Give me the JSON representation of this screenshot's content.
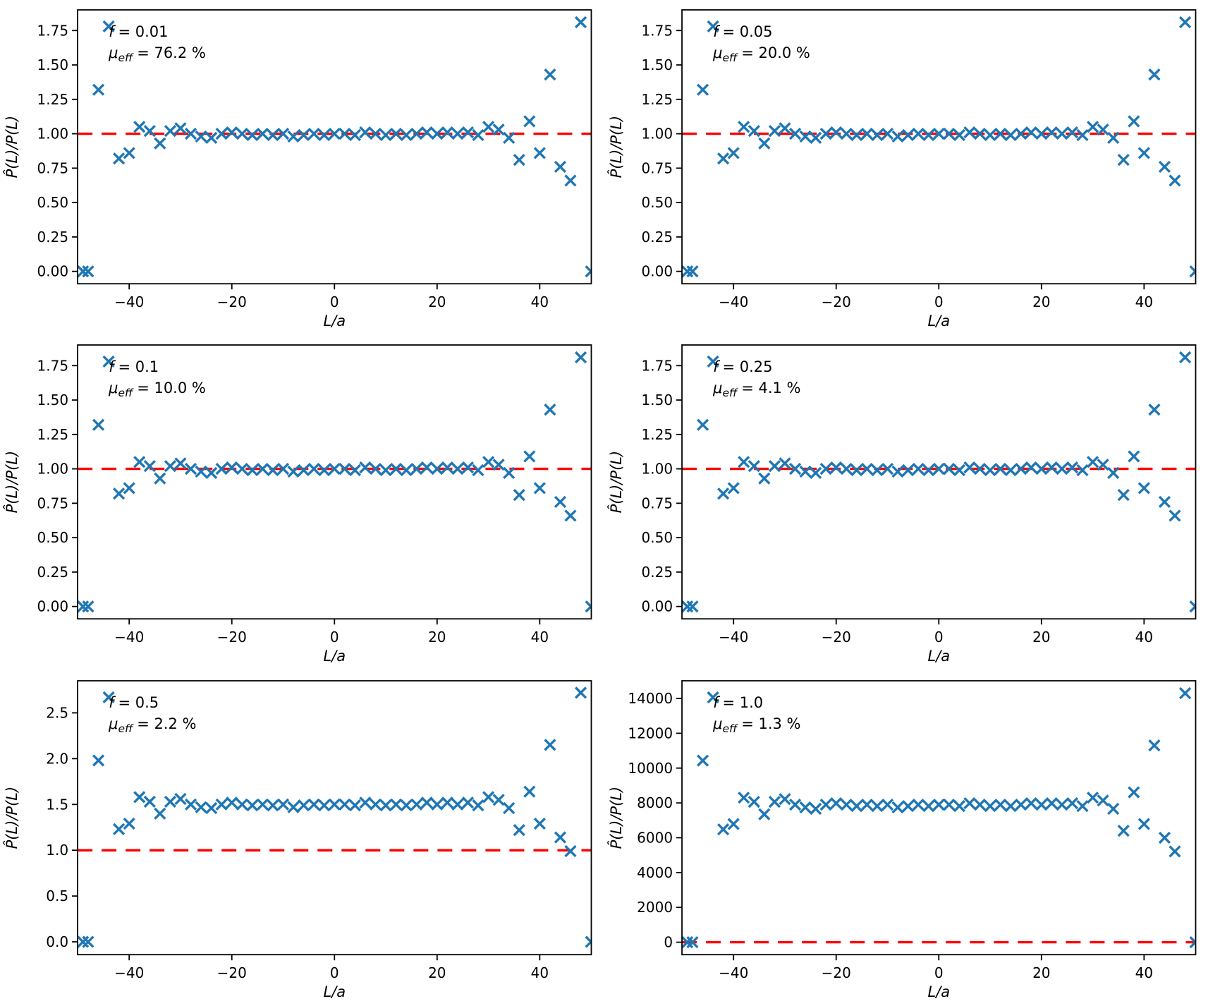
{
  "style": {
    "background": "#ffffff",
    "marker_color": "#1f77b4",
    "reference_line_color": "#ff0000",
    "axis_color": "#000000",
    "text_color": "#000000"
  },
  "chart_data": {
    "type": "scatter",
    "marker": "x",
    "grid": false,
    "legend": "none",
    "xlabel": "L/a",
    "ylabel": "P̂(L)/P(L)",
    "xlim": [
      -50.05,
      50.05
    ],
    "xticks": [
      -40,
      -20,
      0,
      20,
      40
    ],
    "xtick_labels": [
      "−40",
      "−20",
      "0",
      "20",
      "40"
    ],
    "reference_line_y": 1.0,
    "x": [
      -49,
      -48,
      -46,
      -44,
      -42,
      -40,
      -38,
      -36,
      -34,
      -32,
      -30,
      -28,
      -26,
      -24,
      -22,
      -20,
      -18,
      -16,
      -14,
      -12,
      -10,
      -8,
      -6,
      -4,
      -2,
      0,
      2,
      4,
      6,
      8,
      10,
      12,
      14,
      16,
      18,
      20,
      22,
      24,
      26,
      28,
      30,
      32,
      34,
      36,
      38,
      40,
      42,
      44,
      46,
      48,
      50
    ],
    "base_ratio": [
      0.0,
      0.0,
      1.32,
      1.78,
      0.82,
      0.86,
      1.05,
      1.02,
      0.93,
      1.02,
      1.04,
      1.0,
      0.98,
      0.97,
      1.0,
      1.01,
      1.0,
      0.99,
      1.0,
      0.99,
      1.0,
      0.98,
      0.99,
      1.0,
      0.99,
      1.0,
      1.0,
      0.99,
      1.01,
      1.0,
      0.99,
      1.0,
      0.99,
      1.0,
      1.01,
      1.0,
      1.01,
      1.0,
      1.01,
      0.99,
      1.05,
      1.03,
      0.97,
      0.81,
      1.09,
      0.86,
      1.43,
      0.76,
      0.66,
      1.81,
      0.0
    ],
    "panels": [
      {
        "annotation": {
          "symbol": "f",
          "rest": "= 0.01",
          "mu_symbol": "μ",
          "mu_sub": "eff",
          "mu_rest": "= 76.2 %"
        },
        "f": 0.01,
        "mu_eff_percent": 76.2,
        "scale": 1.0,
        "ylim": [
          -0.09,
          1.9
        ],
        "ytick_values": [
          0.0,
          0.25,
          0.5,
          0.75,
          1.0,
          1.25,
          1.5,
          1.75
        ],
        "ytick_labels": [
          "0.00",
          "0.25",
          "0.50",
          "0.75",
          "1.00",
          "1.25",
          "1.50",
          "1.75"
        ],
        "values": [
          0.0,
          0.0,
          1.32,
          1.78,
          0.82,
          0.86,
          1.05,
          1.02,
          0.93,
          1.02,
          1.04,
          1.0,
          0.98,
          0.97,
          1.0,
          1.01,
          1.0,
          0.99,
          1.0,
          0.99,
          1.0,
          0.98,
          0.99,
          1.0,
          0.99,
          1.0,
          1.0,
          0.99,
          1.01,
          1.0,
          0.99,
          1.0,
          0.99,
          1.0,
          1.01,
          1.0,
          1.01,
          1.0,
          1.01,
          0.99,
          1.05,
          1.03,
          0.97,
          0.81,
          1.09,
          0.86,
          1.43,
          0.76,
          0.66,
          1.81,
          0.0
        ]
      },
      {
        "annotation": {
          "symbol": "f",
          "rest": "= 0.05",
          "mu_symbol": "μ",
          "mu_sub": "eff",
          "mu_rest": "= 20.0 %"
        },
        "f": 0.05,
        "mu_eff_percent": 20.0,
        "scale": 1.0,
        "ylim": [
          -0.09,
          1.9
        ],
        "ytick_values": [
          0.0,
          0.25,
          0.5,
          0.75,
          1.0,
          1.25,
          1.5,
          1.75
        ],
        "ytick_labels": [
          "0.00",
          "0.25",
          "0.50",
          "0.75",
          "1.00",
          "1.25",
          "1.50",
          "1.75"
        ],
        "values": [
          0.0,
          0.0,
          1.32,
          1.78,
          0.82,
          0.86,
          1.05,
          1.02,
          0.93,
          1.02,
          1.04,
          1.0,
          0.98,
          0.97,
          1.0,
          1.01,
          1.0,
          0.99,
          1.0,
          0.99,
          1.0,
          0.98,
          0.99,
          1.0,
          0.99,
          1.0,
          1.0,
          0.99,
          1.01,
          1.0,
          0.99,
          1.0,
          0.99,
          1.0,
          1.01,
          1.0,
          1.01,
          1.0,
          1.01,
          0.99,
          1.05,
          1.03,
          0.97,
          0.81,
          1.09,
          0.86,
          1.43,
          0.76,
          0.66,
          1.81,
          0.0
        ]
      },
      {
        "annotation": {
          "symbol": "f",
          "rest": "= 0.1",
          "mu_symbol": "μ",
          "mu_sub": "eff",
          "mu_rest": "= 10.0 %"
        },
        "f": 0.1,
        "mu_eff_percent": 10.0,
        "scale": 1.0,
        "ylim": [
          -0.09,
          1.9
        ],
        "ytick_values": [
          0.0,
          0.25,
          0.5,
          0.75,
          1.0,
          1.25,
          1.5,
          1.75
        ],
        "ytick_labels": [
          "0.00",
          "0.25",
          "0.50",
          "0.75",
          "1.00",
          "1.25",
          "1.50",
          "1.75"
        ],
        "values": [
          0.0,
          0.0,
          1.32,
          1.78,
          0.82,
          0.86,
          1.05,
          1.02,
          0.93,
          1.02,
          1.04,
          1.0,
          0.98,
          0.97,
          1.0,
          1.01,
          1.0,
          0.99,
          1.0,
          0.99,
          1.0,
          0.98,
          0.99,
          1.0,
          0.99,
          1.0,
          1.0,
          0.99,
          1.01,
          1.0,
          0.99,
          1.0,
          0.99,
          1.0,
          1.01,
          1.0,
          1.01,
          1.0,
          1.01,
          0.99,
          1.05,
          1.03,
          0.97,
          0.81,
          1.09,
          0.86,
          1.43,
          0.76,
          0.66,
          1.81,
          0.0
        ]
      },
      {
        "annotation": {
          "symbol": "f",
          "rest": "= 0.25",
          "mu_symbol": "μ",
          "mu_sub": "eff",
          "mu_rest": "= 4.1 %"
        },
        "f": 0.25,
        "mu_eff_percent": 4.1,
        "scale": 1.0,
        "ylim": [
          -0.09,
          1.9
        ],
        "ytick_values": [
          0.0,
          0.25,
          0.5,
          0.75,
          1.0,
          1.25,
          1.5,
          1.75
        ],
        "ytick_labels": [
          "0.00",
          "0.25",
          "0.50",
          "0.75",
          "1.00",
          "1.25",
          "1.50",
          "1.75"
        ],
        "values": [
          0.0,
          0.0,
          1.32,
          1.78,
          0.82,
          0.86,
          1.05,
          1.02,
          0.93,
          1.02,
          1.04,
          1.0,
          0.98,
          0.97,
          1.0,
          1.01,
          1.0,
          0.99,
          1.0,
          0.99,
          1.0,
          0.98,
          0.99,
          1.0,
          0.99,
          1.0,
          1.0,
          0.99,
          1.01,
          1.0,
          0.99,
          1.0,
          0.99,
          1.0,
          1.01,
          1.0,
          1.01,
          1.0,
          1.01,
          0.99,
          1.05,
          1.03,
          0.97,
          0.81,
          1.09,
          0.86,
          1.43,
          0.76,
          0.66,
          1.81,
          0.0
        ]
      },
      {
        "annotation": {
          "symbol": "f",
          "rest": "= 0.5",
          "mu_symbol": "μ",
          "mu_sub": "eff",
          "mu_rest": "= 2.2 %"
        },
        "f": 0.5,
        "mu_eff_percent": 2.2,
        "scale": 1.5,
        "ylim": [
          -0.14,
          2.85
        ],
        "ytick_values": [
          0.0,
          0.5,
          1.0,
          1.5,
          2.0,
          2.5
        ],
        "ytick_labels": [
          "0.0",
          "0.5",
          "1.0",
          "1.5",
          "2.0",
          "2.5"
        ],
        "values": [
          0.0,
          0.0,
          1.98,
          2.67,
          1.23,
          1.29,
          1.58,
          1.53,
          1.4,
          1.53,
          1.56,
          1.5,
          1.47,
          1.46,
          1.5,
          1.52,
          1.5,
          1.49,
          1.5,
          1.49,
          1.5,
          1.47,
          1.49,
          1.5,
          1.49,
          1.5,
          1.5,
          1.49,
          1.52,
          1.5,
          1.49,
          1.5,
          1.49,
          1.5,
          1.52,
          1.5,
          1.52,
          1.5,
          1.52,
          1.49,
          1.58,
          1.55,
          1.46,
          1.22,
          1.64,
          1.29,
          2.15,
          1.14,
          0.99,
          2.72,
          0.0
        ]
      },
      {
        "annotation": {
          "symbol": "f",
          "rest": "= 1.0",
          "mu_symbol": "μ",
          "mu_sub": "eff",
          "mu_rest": "= 1.3 %"
        },
        "f": 1.0,
        "mu_eff_percent": 1.3,
        "scale": 7900,
        "ylim": [
          -715,
          15014
        ],
        "ytick_values": [
          0,
          2000,
          4000,
          6000,
          8000,
          10000,
          12000,
          14000
        ],
        "ytick_labels": [
          "0",
          "2000",
          "4000",
          "6000",
          "8000",
          "10000",
          "12000",
          "14000"
        ],
        "values": [
          0,
          0,
          10430,
          14060,
          6480,
          6790,
          8300,
          8060,
          7350,
          8060,
          8220,
          7900,
          7740,
          7660,
          7900,
          7980,
          7900,
          7820,
          7900,
          7820,
          7900,
          7740,
          7820,
          7900,
          7820,
          7900,
          7900,
          7820,
          7980,
          7900,
          7820,
          7900,
          7820,
          7900,
          7980,
          7900,
          7980,
          7900,
          7980,
          7820,
          8300,
          8140,
          7660,
          6400,
          8610,
          6790,
          11300,
          6000,
          5210,
          14300,
          0
        ]
      }
    ]
  }
}
